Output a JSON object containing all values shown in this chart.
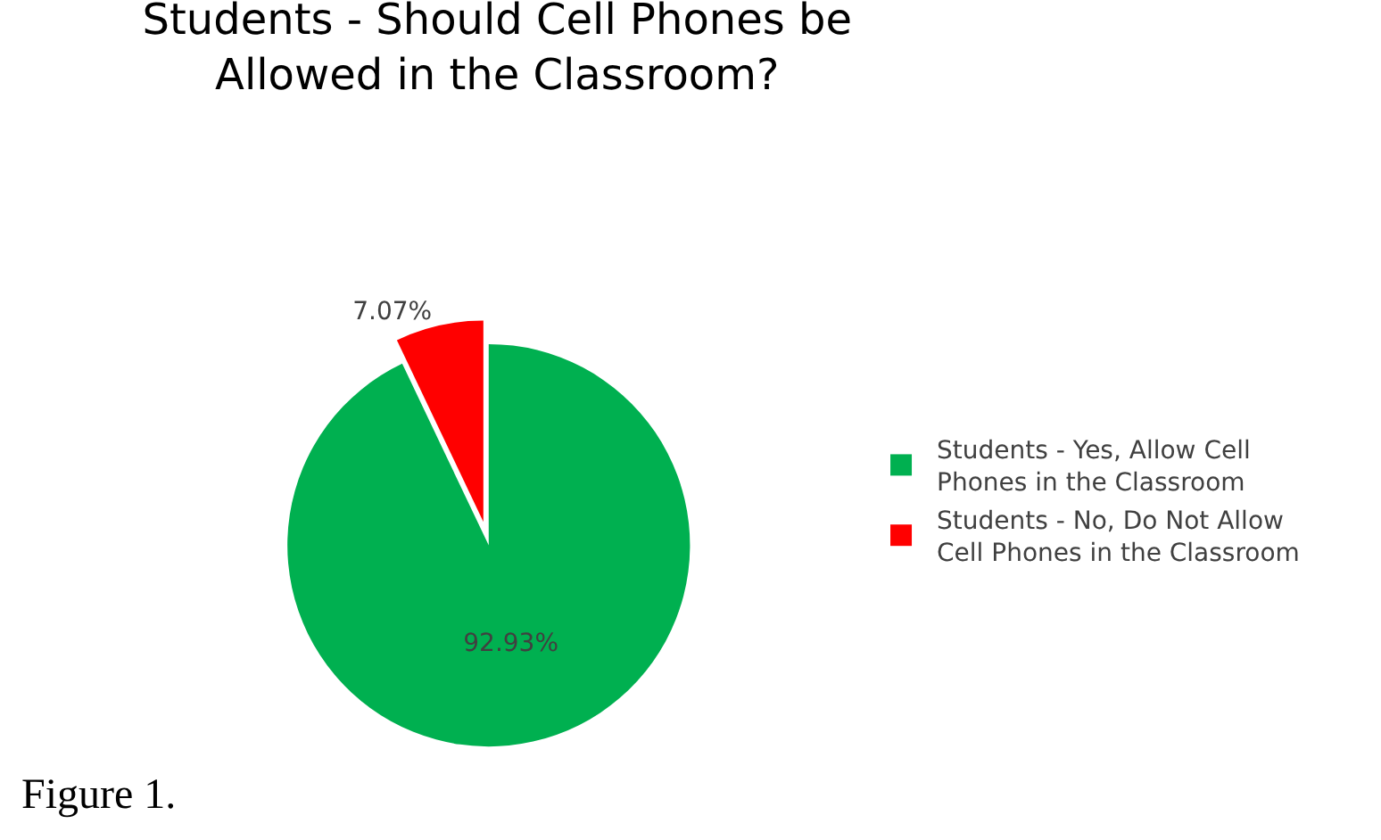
{
  "chart_data": {
    "type": "pie",
    "title": "Students - Should Cell Phones be Allowed in the Classroom?",
    "categories": [
      "Students - Yes, Allow Cell Phones in the Classroom",
      "Students - No, Do Not Allow Cell Phones in the Classroom"
    ],
    "values": [
      92.93,
      7.07
    ],
    "colors": [
      "#00b050",
      "#ff0000"
    ],
    "value_labels": [
      "92.93%",
      "7.07%"
    ],
    "legend": "right",
    "annotations": [
      "Figure 1."
    ]
  }
}
